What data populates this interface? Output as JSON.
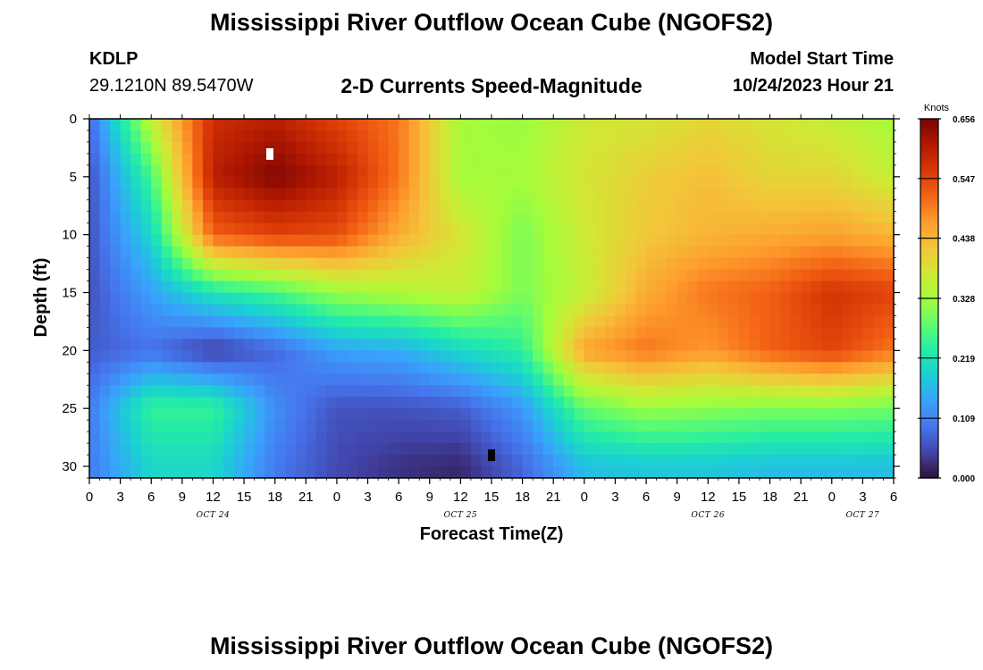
{
  "page": {
    "title": "Mississippi River Outflow Ocean Cube (NGOFS2)",
    "title_repeat": "Mississippi River Outflow Ocean Cube (NGOFS2)",
    "station": "KDLP",
    "coords": "29.1210N  89.5470W",
    "subtitle": "2-D Currents Speed-Magnitude",
    "model_label": "Model Start Time",
    "model_time": "10/24/2023 Hour 21"
  },
  "chart_data": {
    "type": "heatmap",
    "title": "2-D Currents Speed-Magnitude",
    "xlabel": "Forecast Time(Z)",
    "ylabel": "Depth (ft)",
    "x_ticks": [
      "0",
      "3",
      "6",
      "9",
      "12",
      "15",
      "18",
      "21",
      "0",
      "3",
      "6",
      "9",
      "12",
      "15",
      "18",
      "21",
      "0",
      "3",
      "6",
      "9",
      "12",
      "15",
      "18",
      "21",
      "0",
      "3",
      "6"
    ],
    "date_labels": [
      {
        "text": "OCT 24",
        "tick_index": 4
      },
      {
        "text": "OCT 25",
        "tick_index": 12
      },
      {
        "text": "OCT 26",
        "tick_index": 20
      },
      {
        "text": "OCT 27",
        "tick_index": 25
      }
    ],
    "y_ticks": [
      0,
      5,
      10,
      15,
      20,
      25,
      30
    ],
    "ylim": [
      0,
      31
    ],
    "xlim_hours": [
      0,
      78
    ],
    "colorbar": {
      "label": "Knots",
      "range": [
        0,
        0.656
      ],
      "tick_values": [
        0.0,
        0.109,
        0.219,
        0.328,
        0.438,
        0.547,
        0.656
      ],
      "tick_labels": [
        "0.000",
        "0.109",
        "0.219",
        "0.328",
        "0.438",
        "0.547",
        "0.656"
      ],
      "colors": [
        "#30123b",
        "#4145ab",
        "#4675ed",
        "#39a2fc",
        "#1bcfd4",
        "#24eca6",
        "#61fc6c",
        "#a4fc3b",
        "#d1e834",
        "#f3c63a",
        "#fe9b2d",
        "#f36315",
        "#d93806",
        "#b11901",
        "#7a0403"
      ]
    },
    "depth_levels_ft": [
      0,
      5,
      10,
      15,
      20,
      25,
      30
    ],
    "hours": [
      0,
      6,
      12,
      18,
      24,
      30,
      36,
      42,
      48,
      54,
      60,
      66,
      72,
      78
    ],
    "speed_knots": [
      [
        0.08,
        0.36,
        0.58,
        0.6,
        0.55,
        0.5,
        0.33,
        0.32,
        0.37,
        0.38,
        0.4,
        0.38,
        0.36,
        0.33
      ],
      [
        0.06,
        0.26,
        0.6,
        0.65,
        0.6,
        0.5,
        0.33,
        0.33,
        0.38,
        0.41,
        0.43,
        0.4,
        0.4,
        0.36
      ],
      [
        0.06,
        0.2,
        0.52,
        0.55,
        0.54,
        0.45,
        0.38,
        0.3,
        0.37,
        0.42,
        0.44,
        0.45,
        0.46,
        0.44
      ],
      [
        0.06,
        0.14,
        0.22,
        0.26,
        0.32,
        0.34,
        0.36,
        0.3,
        0.36,
        0.45,
        0.5,
        0.52,
        0.57,
        0.55
      ],
      [
        0.07,
        0.09,
        0.04,
        0.08,
        0.14,
        0.15,
        0.2,
        0.24,
        0.46,
        0.5,
        0.47,
        0.52,
        0.55,
        0.5
      ],
      [
        0.1,
        0.25,
        0.25,
        0.12,
        0.06,
        0.06,
        0.07,
        0.13,
        0.28,
        0.32,
        0.31,
        0.3,
        0.3,
        0.29
      ],
      [
        0.1,
        0.2,
        0.2,
        0.1,
        0.05,
        0.03,
        0.02,
        0.08,
        0.17,
        0.18,
        0.18,
        0.17,
        0.17,
        0.17
      ]
    ],
    "markers": [
      {
        "hour": 17.5,
        "depth_ft": 3,
        "color": "#ffffff"
      },
      {
        "hour": 39,
        "depth_ft": 29,
        "color": "#000000"
      }
    ]
  }
}
